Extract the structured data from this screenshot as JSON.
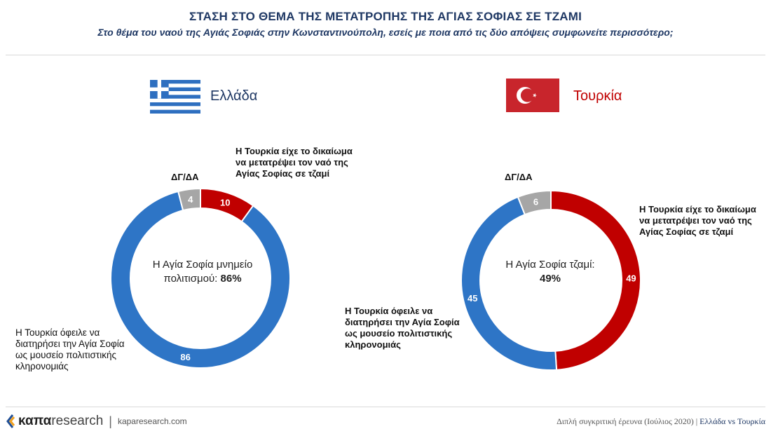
{
  "header": {
    "title": "ΣΤΑΣΗ ΣΤΟ ΘΕΜΑ ΤΗΣ ΜΕΤΑΤΡΟΠΗΣ ΤΗΣ ΑΓΙΑΣ ΣΟΦΙΑΣ ΣΕ ΤΖΑΜΙ",
    "subtitle": "Στο θέμα του ναού της Αγιάς Σοφιάς στην Κωνσταντινούπολη, εσείς με ποια από τις δύο απόψεις συμφωνείτε περισσότερο;"
  },
  "colors": {
    "blue": "#2e75c6",
    "red": "#c00000",
    "gray": "#a6a6a6",
    "navy": "#1f3864"
  },
  "chart_data": [
    {
      "type": "pie",
      "country": "Ελλάδα",
      "flag_icon": "greek-flag-icon",
      "segments": [
        {
          "name": "Η Τουρκία είχε το δικαίωμα να μετατρέψει τον ναό της Αγίας Σοφίας σε τζαμί",
          "value": 10,
          "color": "#c00000"
        },
        {
          "name": "Η Τουρκία όφειλε να διατηρήσει την Αγία Σοφία ως μουσείο πολιτιστικής κληρονομιάς",
          "value": 86,
          "color": "#2e75c6"
        },
        {
          "name": "ΔΓ/ΔΑ",
          "value": 4,
          "color": "#a6a6a6"
        }
      ],
      "center_text": "Η Αγία Σοφία μνημείο πολιτισμού:",
      "center_value": "86%",
      "labels": {
        "red_lines": [
          "Η Τουρκία είχε το δικαίωμα",
          "να μετατρέψει τον ναό της",
          "Αγίας Σοφίας σε τζαμί"
        ],
        "blue_lines": [
          "Η Τουρκία όφειλε να",
          "διατηρήσει την Αγία Σοφία",
          "ως μουσείο πολιτιστικής",
          "κληρονομιάς"
        ],
        "gray": "ΔΓ/ΔΑ"
      }
    },
    {
      "type": "pie",
      "country": "Τουρκία",
      "flag_icon": "turkish-flag-icon",
      "segments": [
        {
          "name": "Η Τουρκία είχε το δικαίωμα να μετατρέψει τον ναό της Αγίας Σοφίας σε τζαμί",
          "value": 49,
          "color": "#c00000"
        },
        {
          "name": "Η Τουρκία όφειλε να διατηρήσει την Αγία Σοφία ως μουσείο πολιτιστικής κληρονομιάς",
          "value": 45,
          "color": "#2e75c6"
        },
        {
          "name": "ΔΓ/ΔΑ",
          "value": 6,
          "color": "#a6a6a6"
        }
      ],
      "center_text": "Η Αγία Σοφία τζαμί:",
      "center_value": "49%",
      "labels": {
        "red_lines": [
          "Η Τουρκία είχε το δικαίωμα",
          "να μετατρέψει τον ναό της",
          "Αγίας Σοφίας σε τζαμί"
        ],
        "blue_lines": [
          "Η Τουρκία όφειλε να",
          "διατηρήσει την Αγία Σοφία",
          "ως μουσείο πολιτιστικής",
          "κληρονομιάς"
        ],
        "gray": "ΔΓ/ΔΑ"
      }
    }
  ],
  "footer": {
    "logo_bold": "καπα",
    "logo_light": "research",
    "separator": "|",
    "site": "kaparesearch.com",
    "note": "Διπλή συγκριτική έρευνα (Ιούλιος 2020) |",
    "note_highlight": "Ελλάδα vs Τουρκία"
  }
}
